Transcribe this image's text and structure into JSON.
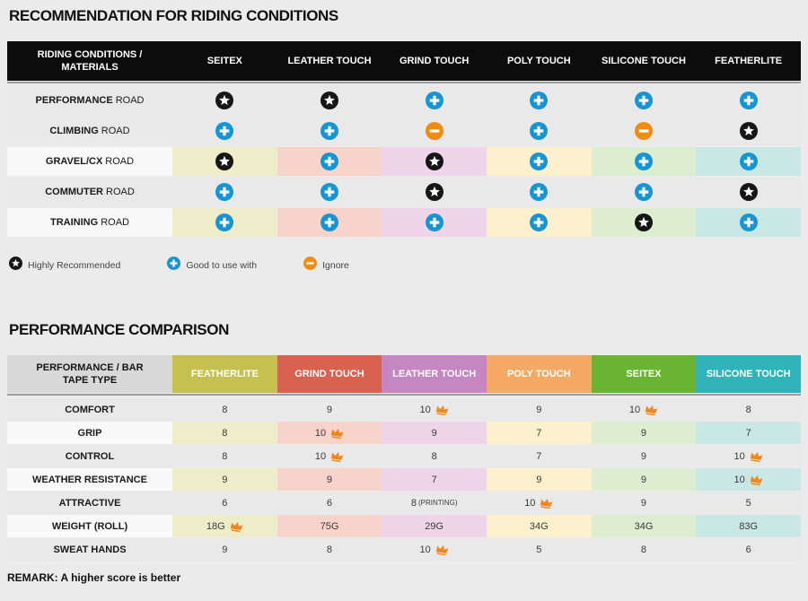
{
  "colors": {
    "star": "#161616",
    "plus": "#1795d3",
    "minus": "#ef8c13",
    "crown": "#f0871d",
    "table1_header_bg": "#0c0c0c"
  },
  "section1": {
    "title": "RECOMMENDATION FOR RIDING CONDITIONS",
    "table": {
      "corner_header": "RIDING CONDITIONS / MATERIALS",
      "columns": [
        "SEITEX",
        "LEATHER TOUCH",
        "GRIND TOUCH",
        "POLY TOUCH",
        "SILICONE TOUCH",
        "FEATHERLITE"
      ],
      "column_tints": [
        "#eeedc9",
        "#f7d3c9",
        "#eed5ea",
        "#fdf0cd",
        "#ddedcf",
        "#c9e7e5"
      ],
      "row_bg_plain": "#e9e9e9",
      "row_label_bg_tinted": "#f9f9f9",
      "rows": [
        {
          "label_bold": "PERFORMANCE",
          "label_rest": "ROAD",
          "tinted": false,
          "cells": [
            "star",
            "star",
            "plus",
            "plus",
            "plus",
            "plus"
          ]
        },
        {
          "label_bold": "CLIMBING",
          "label_rest": "ROAD",
          "tinted": false,
          "cells": [
            "plus",
            "plus",
            "minus",
            "plus",
            "minus",
            "star"
          ]
        },
        {
          "label_bold": "GRAVEL/CX",
          "label_rest": "ROAD",
          "tinted": true,
          "cells": [
            "star",
            "plus",
            "star",
            "plus",
            "plus",
            "plus"
          ]
        },
        {
          "label_bold": "COMMUTER",
          "label_rest": "ROAD",
          "tinted": false,
          "cells": [
            "plus",
            "plus",
            "star",
            "plus",
            "plus",
            "star"
          ]
        },
        {
          "label_bold": "TRAINING",
          "label_rest": "ROAD",
          "tinted": true,
          "cells": [
            "plus",
            "plus",
            "plus",
            "plus",
            "star",
            "plus"
          ]
        }
      ]
    },
    "legend": [
      {
        "icon": "star",
        "label": "Highly Recommended"
      },
      {
        "icon": "plus",
        "label": "Good to use with"
      },
      {
        "icon": "minus",
        "label": "Ignore"
      }
    ]
  },
  "section2": {
    "title": "PERFORMANCE COMPARISON",
    "table": {
      "corner_header": "PERFORMANCE / BAR TAPE TYPE",
      "columns": [
        {
          "label": "FEATHERLITE",
          "color": "#c6c050",
          "tint": "#eeedc9"
        },
        {
          "label": "GRIND TOUCH",
          "color": "#d96150",
          "tint": "#f7d3c9"
        },
        {
          "label": "LEATHER TOUCH",
          "color": "#c686c2",
          "tint": "#eed5ea"
        },
        {
          "label": "POLY TOUCH",
          "color": "#f4aa64",
          "tint": "#fdf0cd"
        },
        {
          "label": "SEITEX",
          "color": "#69b430",
          "tint": "#ddedcf"
        },
        {
          "label": "SILICONE TOUCH",
          "color": "#30b4ba",
          "tint": "#c9e7e5"
        }
      ],
      "rows": [
        {
          "label": "COMFORT",
          "tinted": false,
          "cells": [
            {
              "v": "8"
            },
            {
              "v": "9"
            },
            {
              "v": "10",
              "crown": true
            },
            {
              "v": "9"
            },
            {
              "v": "10",
              "crown": true
            },
            {
              "v": "8"
            }
          ]
        },
        {
          "label": "GRIP",
          "tinted": true,
          "cells": [
            {
              "v": "8"
            },
            {
              "v": "10",
              "crown": true
            },
            {
              "v": "9"
            },
            {
              "v": "7"
            },
            {
              "v": "9"
            },
            {
              "v": "7"
            }
          ]
        },
        {
          "label": "CONTROL",
          "tinted": false,
          "cells": [
            {
              "v": "8"
            },
            {
              "v": "10",
              "crown": true
            },
            {
              "v": "8"
            },
            {
              "v": "7"
            },
            {
              "v": "9"
            },
            {
              "v": "10",
              "crown": true
            }
          ]
        },
        {
          "label": "WEATHER RESISTANCE",
          "tinted": true,
          "cells": [
            {
              "v": "9"
            },
            {
              "v": "9"
            },
            {
              "v": "7"
            },
            {
              "v": "9"
            },
            {
              "v": "9"
            },
            {
              "v": "10",
              "crown": true
            }
          ]
        },
        {
          "label": "ATTRACTIVE",
          "tinted": false,
          "cells": [
            {
              "v": "6"
            },
            {
              "v": "6"
            },
            {
              "v": "8",
              "suffix": "(PRINTING)"
            },
            {
              "v": "10",
              "crown": true
            },
            {
              "v": "9"
            },
            {
              "v": "5"
            }
          ]
        },
        {
          "label": "WEIGHT (ROLL)",
          "tinted": true,
          "cells": [
            {
              "v": "18G",
              "crown": true
            },
            {
              "v": "75G"
            },
            {
              "v": "29G"
            },
            {
              "v": "34G"
            },
            {
              "v": "34G"
            },
            {
              "v": "83G"
            }
          ]
        },
        {
          "label": "SWEAT HANDS",
          "tinted": false,
          "cells": [
            {
              "v": "9"
            },
            {
              "v": "8"
            },
            {
              "v": "10",
              "crown": true
            },
            {
              "v": "5"
            },
            {
              "v": "8"
            },
            {
              "v": "6"
            }
          ]
        }
      ]
    },
    "remark": "REMARK: A higher score is better"
  }
}
